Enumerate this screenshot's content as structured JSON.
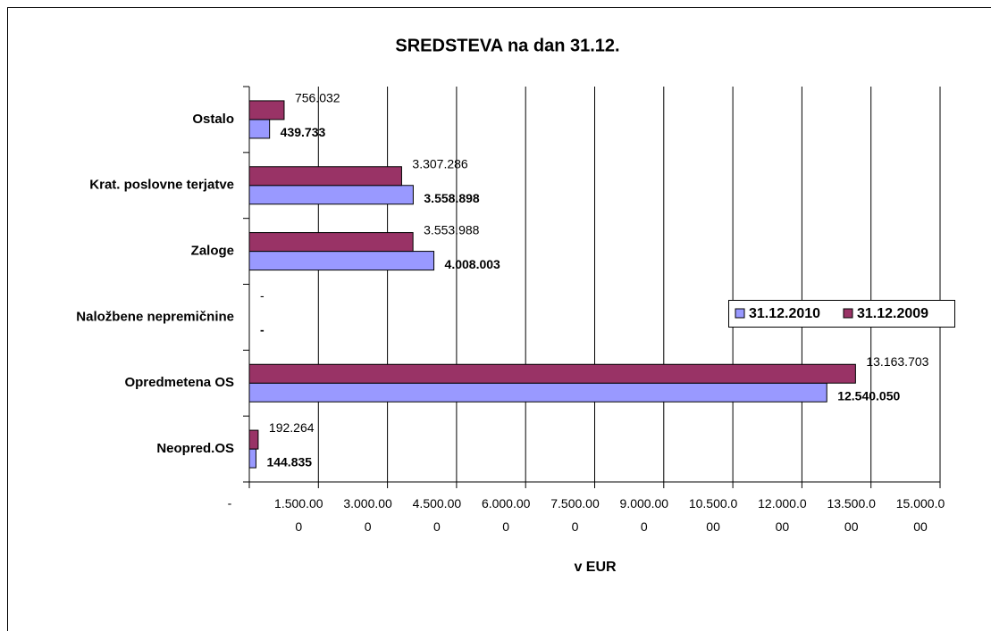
{
  "chart_data": {
    "type": "hbar",
    "title": "SREDSTEVA na dan  31.12.",
    "xlabel": "v   EUR",
    "categories": [
      "Ostalo",
      "Krat. poslovne terjatve",
      "Zaloge",
      "Naložbene nepremičnine",
      "Opredmetena OS",
      "Neopred.OS"
    ],
    "series": [
      {
        "name": "31.12.2010",
        "color": "#9999ff",
        "values": [
          439733,
          3558898,
          4008003,
          0,
          12540050,
          144835
        ],
        "value_labels": [
          "439.733",
          "3.558.898",
          "4.008.003",
          "-",
          "12.540.050",
          "144.835"
        ]
      },
      {
        "name": "31.12.2009",
        "color": "#993366",
        "values": [
          756032,
          3307286,
          3553988,
          0,
          13163703,
          192264
        ],
        "value_labels": [
          "756.032",
          "3.307.286",
          "3.553.988",
          "-",
          "13.163.703",
          "192.264"
        ]
      }
    ],
    "xlim": [
      0,
      15000000
    ],
    "xticks": [
      {
        "value": 0,
        "label": "-"
      },
      {
        "value": 1500000,
        "label": "1.500.000"
      },
      {
        "value": 3000000,
        "label": "3.000.000"
      },
      {
        "value": 4500000,
        "label": "4.500.000"
      },
      {
        "value": 6000000,
        "label": "6.000.000"
      },
      {
        "value": 7500000,
        "label": "7.500.000"
      },
      {
        "value": 9000000,
        "label": "9.000.000"
      },
      {
        "value": 10500000,
        "label": "10.500.000"
      },
      {
        "value": 12000000,
        "label": "12.000.000"
      },
      {
        "value": 13500000,
        "label": "13.500.000"
      },
      {
        "value": 15000000,
        "label": "15.000.000"
      }
    ],
    "grid": true,
    "legend": "right"
  }
}
